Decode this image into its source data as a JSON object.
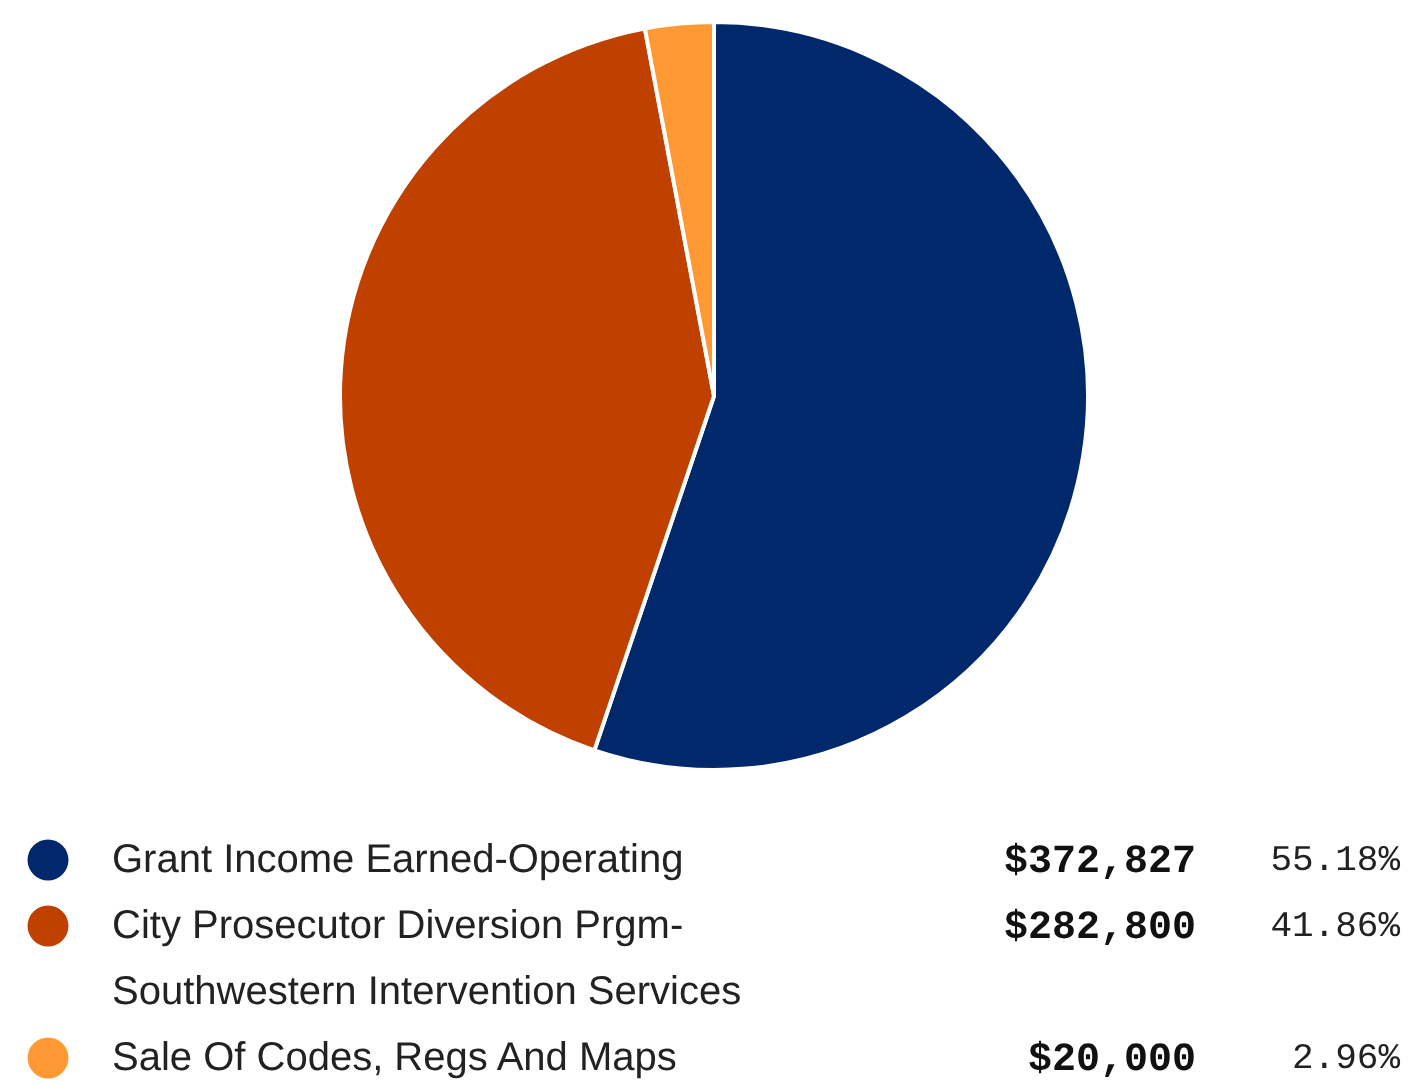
{
  "chart_data": {
    "type": "pie",
    "categories": [
      "Grant Income Earned-Operating",
      "City Prosecutor Diversion Prgm-Southwestern Intervention Services",
      "Sale Of Codes, Regs And Maps"
    ],
    "values": [
      372827,
      282800,
      20000
    ],
    "colors": [
      "#00286a",
      "#c04000",
      "#ff9933"
    ],
    "value_labels": [
      "$372,827",
      "$282,800",
      "$20,000"
    ],
    "annotations": [
      "55.18%",
      "41.86%",
      "2.96%"
    ],
    "legend": "bottom"
  }
}
